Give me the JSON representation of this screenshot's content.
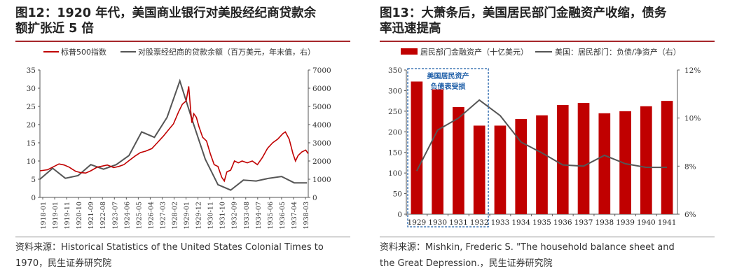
{
  "left": {
    "title_line1": "图12：1920 年代，美国商业银行对美股经纪商贷款余",
    "title_line2": "额扩张近 5 倍",
    "source_line1": "资料来源：Historical Statistics of the United States Colonial Times to",
    "source_line2": "1970，民生证券研究院"
  },
  "right": {
    "title_line1": "图13：大萧条后，美国居民部门金融资产收缩，债务",
    "title_line2": "率迅速提高",
    "source_line1": "资料来源：Mishkin, Frederic S. \"The household balance sheet and",
    "source_line2": "the Great Depression.，民生证券研究院"
  },
  "chart_data": [
    {
      "type": "line",
      "legend_placement": "top",
      "grid": false,
      "x_tick_labels": [
        "1918-01",
        "1919-01",
        "1919-11",
        "1920-10",
        "1921-09",
        "1922-08",
        "1923-07",
        "1924-06",
        "1925-05",
        "1926-04",
        "1927-03",
        "1928-02",
        "1929-01",
        "1929-12",
        "1930-11",
        "1931-10",
        "1932-09",
        "1933-08",
        "1934-07",
        "1935-06",
        "1936-05",
        "1937-04",
        "1938-03"
      ],
      "y_left": {
        "lim": [
          0,
          35
        ],
        "ticks": [
          "0",
          "5",
          "10",
          "15",
          "20",
          "25",
          "30",
          "35"
        ]
      },
      "y_right": {
        "lim": [
          0,
          7000
        ],
        "ticks": [
          "0",
          "1000",
          "2000",
          "3000",
          "4000",
          "5000",
          "6000",
          "7000"
        ]
      },
      "series": [
        {
          "name": "标普500指数",
          "axis": "left",
          "color": "#c00000",
          "x": [
            1918.0,
            1918.6,
            1919.0,
            1919.5,
            1919.9,
            1920.3,
            1920.8,
            1921.2,
            1921.6,
            1922.0,
            1922.5,
            1922.9,
            1923.3,
            1923.8,
            1924.2,
            1924.6,
            1925.0,
            1925.5,
            1925.9,
            1926.3,
            1926.8,
            1927.2,
            1927.7,
            1928.1,
            1928.5,
            1928.9,
            1929.2,
            1929.5,
            1929.7,
            1929.85,
            1929.95,
            1930.1,
            1930.3,
            1930.5,
            1930.8,
            1931.1,
            1931.4,
            1931.7,
            1932.0,
            1932.3,
            1932.5,
            1932.7,
            1933.0,
            1933.3,
            1933.6,
            1933.9,
            1934.3,
            1934.7,
            1935.1,
            1935.5,
            1935.9,
            1936.3,
            1936.7,
            1937.1,
            1937.3,
            1937.6,
            1937.9,
            1938.1,
            1938.3,
            1938.6,
            1938.9,
            1939.1
          ],
          "values": [
            7.3,
            7.6,
            8.3,
            9.2,
            8.9,
            8.3,
            7.2,
            6.8,
            6.7,
            7.3,
            8.3,
            8.6,
            8.9,
            8.2,
            8.5,
            9.0,
            10.1,
            11.4,
            12.3,
            12.7,
            13.4,
            14.9,
            16.8,
            18.5,
            20.2,
            23.5,
            25.6,
            26.5,
            30.5,
            24.0,
            20.5,
            23.0,
            22.0,
            19.5,
            16.5,
            15.5,
            12.0,
            9.0,
            8.5,
            5.5,
            4.5,
            7.0,
            7.5,
            10.0,
            9.5,
            10.0,
            9.5,
            10.0,
            9.0,
            11.0,
            13.5,
            15.0,
            16.0,
            17.5,
            18.0,
            16.0,
            12.0,
            10.0,
            11.5,
            12.5,
            13.0,
            12.0
          ]
        },
        {
          "name": "对股票经纪商的贷款余额（百万美元，年末值，右）",
          "axis": "right",
          "color": "#555555",
          "x": [
            1918.0,
            1919.0,
            1920.0,
            1921.0,
            1922.0,
            1923.0,
            1924.0,
            1925.0,
            1926.0,
            1927.0,
            1928.0,
            1929.0,
            1930.0,
            1931.0,
            1932.0,
            1933.0,
            1934.0,
            1935.0,
            1936.0,
            1937.0,
            1938.0,
            1939.0
          ],
          "values": [
            1000,
            1600,
            1050,
            1200,
            1800,
            1550,
            1800,
            2300,
            3600,
            3300,
            4400,
            6400,
            4200,
            2100,
            700,
            400,
            950,
            900,
            1050,
            1150,
            800,
            800
          ]
        }
      ]
    },
    {
      "type": "bar",
      "legend_placement": "top",
      "grid": false,
      "categories": [
        "1929",
        "1930",
        "1931",
        "1932",
        "1933",
        "1934",
        "1935",
        "1936",
        "1937",
        "1938",
        "1939",
        "1940",
        "1941"
      ],
      "y_left": {
        "lim": [
          0,
          350
        ],
        "ticks": [
          "0",
          "50",
          "100",
          "150",
          "200",
          "250",
          "300",
          "350"
        ]
      },
      "y_right": {
        "lim": [
          6,
          12
        ],
        "ticks": [
          "6%",
          "8%",
          "10%",
          "12%"
        ]
      },
      "series": [
        {
          "name": "居民部门金融资产（十亿美元）",
          "axis": "left",
          "color": "#c00000",
          "values": [
            322,
            303,
            260,
            215,
            215,
            231,
            240,
            265,
            270,
            245,
            250,
            262,
            275
          ]
        },
        {
          "name": "美国：居民部门：负债/净资产（右）",
          "axis": "right",
          "color": "#555555",
          "values": [
            7.8,
            9.5,
            10.0,
            10.75,
            10.1,
            9.0,
            8.55,
            8.05,
            8.0,
            8.45,
            8.1,
            7.95,
            7.95
          ]
        }
      ],
      "annotation": {
        "text_line1": "美国居民资产",
        "text_line2": "负债表受损",
        "color": "#1f5fa8",
        "covers": [
          "1929",
          "1932"
        ]
      }
    }
  ]
}
